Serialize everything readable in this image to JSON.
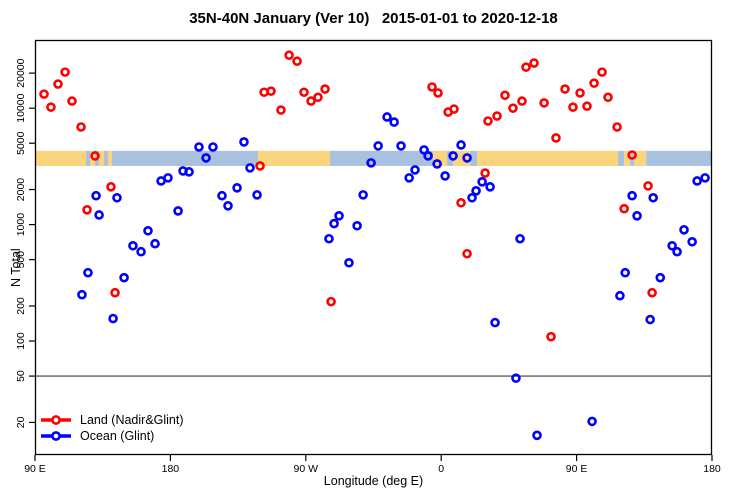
{
  "title": "35N-40N January (Ver 10)   2015-01-01 to 2020-12-18",
  "chart_data": {
    "type": "scatter",
    "xlabel": "Longitude (deg E)",
    "ylabel": "N Total",
    "x_axis": {
      "range_deg": [
        0,
        450
      ],
      "ticks_deg": [
        0,
        90,
        180,
        270,
        360,
        450
      ],
      "tick_labels": [
        "90 E",
        "180",
        "90 W",
        "0",
        "90 E",
        "180"
      ]
    },
    "y_axis": {
      "scale": "log",
      "ylim": [
        10.5,
        38500
      ],
      "ticks": [
        20,
        50,
        100,
        200,
        500,
        1000,
        2000,
        5000,
        10000,
        20000
      ],
      "tick_labels": [
        "20",
        "50",
        "100",
        "200",
        "500",
        "1000",
        "2000",
        "5000",
        "10000",
        "20000"
      ]
    },
    "reference_line_y": 50,
    "grid": "off",
    "legend_position": "bottom-left",
    "legend": [
      {
        "label": "Land (Nadir&Glint)",
        "color": "#FF0000"
      },
      {
        "label": "Ocean (Glint)",
        "color": "#0000FF"
      }
    ],
    "surface_band": {
      "description": "land/ocean strip along 35N-40N",
      "value_top": 4300,
      "value_bottom": 3190,
      "land_color": "#FAD57E",
      "ocean_color": "#A9C0DF",
      "segments": [
        {
          "from": 0.0,
          "to": 33.9,
          "surface": "land"
        },
        {
          "from": 33.9,
          "to": 36.6,
          "surface": "ocean"
        },
        {
          "from": 36.6,
          "to": 39.9,
          "surface": "land"
        },
        {
          "from": 39.9,
          "to": 42.5,
          "surface": "ocean"
        },
        {
          "from": 42.5,
          "to": 45.9,
          "surface": "land"
        },
        {
          "from": 45.9,
          "to": 48.5,
          "surface": "ocean"
        },
        {
          "from": 48.5,
          "to": 51.2,
          "surface": "land"
        },
        {
          "from": 51.2,
          "to": 148.2,
          "surface": "ocean"
        },
        {
          "from": 148.2,
          "to": 196.1,
          "surface": "land"
        },
        {
          "from": 196.1,
          "to": 264.6,
          "surface": "ocean"
        },
        {
          "from": 264.6,
          "to": 273.9,
          "surface": "land"
        },
        {
          "from": 273.9,
          "to": 277.9,
          "surface": "ocean"
        },
        {
          "from": 277.9,
          "to": 289.2,
          "surface": "land"
        },
        {
          "from": 289.2,
          "to": 293.8,
          "surface": "ocean"
        },
        {
          "from": 293.8,
          "to": 387.6,
          "surface": "land"
        },
        {
          "from": 387.6,
          "to": 391.6,
          "surface": "ocean"
        },
        {
          "from": 391.6,
          "to": 395.6,
          "surface": "land"
        },
        {
          "from": 395.6,
          "to": 398.3,
          "surface": "ocean"
        },
        {
          "from": 398.3,
          "to": 406.3,
          "surface": "land"
        },
        {
          "from": 406.3,
          "to": 450.0,
          "surface": "ocean"
        }
      ]
    },
    "series": [
      {
        "name": "Land (Nadir&Glint)",
        "color": "#FF0000",
        "points": [
          [
            20.0,
            20400
          ],
          [
            15.3,
            16100
          ],
          [
            6.0,
            13200
          ],
          [
            24.6,
            11500
          ],
          [
            10.6,
            10200
          ],
          [
            30.6,
            6890
          ],
          [
            39.9,
            3890
          ],
          [
            50.5,
            2110
          ],
          [
            34.6,
            1340
          ],
          [
            53.2,
            260
          ],
          [
            149.6,
            3190
          ],
          [
            168.9,
            28500
          ],
          [
            174.2,
            25300
          ],
          [
            152.3,
            13700
          ],
          [
            156.9,
            14000
          ],
          [
            178.8,
            13700
          ],
          [
            183.5,
            11500
          ],
          [
            188.1,
            12400
          ],
          [
            192.8,
            14600
          ],
          [
            163.5,
            9640
          ],
          [
            196.8,
            218
          ],
          [
            263.9,
            15200
          ],
          [
            267.9,
            13500
          ],
          [
            274.6,
            9260
          ],
          [
            278.5,
            9820
          ],
          [
            283.2,
            1540
          ],
          [
            287.2,
            562
          ],
          [
            299.2,
            2770
          ],
          [
            301.1,
            7760
          ],
          [
            326.4,
            22500
          ],
          [
            331.7,
            24400
          ],
          [
            312.4,
            12900
          ],
          [
            317.7,
            10000
          ],
          [
            323.7,
            11500
          ],
          [
            307.1,
            8560
          ],
          [
            338.4,
            11100
          ],
          [
            346.3,
            5550
          ],
          [
            352.3,
            14600
          ],
          [
            362.3,
            13500
          ],
          [
            357.6,
            10200
          ],
          [
            366.9,
            10400
          ],
          [
            371.6,
            16400
          ],
          [
            376.9,
            20400
          ],
          [
            380.9,
            12400
          ],
          [
            343.0,
            109
          ],
          [
            386.9,
            6890
          ],
          [
            391.6,
            1370
          ],
          [
            396.9,
            3960
          ],
          [
            407.5,
            2150
          ],
          [
            410.2,
            260
          ]
        ]
      },
      {
        "name": "Ocean (Glint)",
        "color": "#0000FF",
        "points": [
          [
            40.6,
            1770
          ],
          [
            54.5,
            1700
          ],
          [
            42.6,
            1210
          ],
          [
            35.2,
            386
          ],
          [
            59.2,
            350
          ],
          [
            31.2,
            250
          ],
          [
            51.9,
            156
          ],
          [
            75.1,
            885
          ],
          [
            65.1,
            658
          ],
          [
            70.5,
            585
          ],
          [
            79.8,
            685
          ],
          [
            83.8,
            2370
          ],
          [
            88.4,
            2520
          ],
          [
            98.4,
            2890
          ],
          [
            102.4,
            2840
          ],
          [
            109.0,
            4640
          ],
          [
            113.7,
            3740
          ],
          [
            118.3,
            4640
          ],
          [
            138.9,
            5130
          ],
          [
            142.9,
            3070
          ],
          [
            95.1,
            1310
          ],
          [
            124.3,
            1770
          ],
          [
            128.3,
            1450
          ],
          [
            134.3,
            2070
          ],
          [
            147.6,
            1800
          ],
          [
            195.4,
            756
          ],
          [
            198.8,
            1020
          ],
          [
            202.1,
            1190
          ],
          [
            214.1,
            977
          ],
          [
            208.7,
            470
          ],
          [
            218.1,
            1800
          ],
          [
            223.4,
            3390
          ],
          [
            228.1,
            4740
          ],
          [
            234.0,
            8400
          ],
          [
            238.7,
            7600
          ],
          [
            243.3,
            4740
          ],
          [
            248.7,
            2520
          ],
          [
            252.6,
            2950
          ],
          [
            258.6,
            4380
          ],
          [
            261.3,
            3890
          ],
          [
            267.3,
            3320
          ],
          [
            272.6,
            2620
          ],
          [
            277.9,
            3890
          ],
          [
            283.2,
            4830
          ],
          [
            287.2,
            3740
          ],
          [
            293.2,
            1950
          ],
          [
            290.5,
            1700
          ],
          [
            297.2,
            2330
          ],
          [
            302.5,
            2110
          ],
          [
            305.8,
            144
          ],
          [
            322.4,
            756
          ],
          [
            319.7,
            48
          ],
          [
            388.8,
            245
          ],
          [
            392.3,
            386
          ],
          [
            396.9,
            1770
          ],
          [
            400.2,
            1190
          ],
          [
            408.9,
            153
          ],
          [
            410.9,
            1700
          ],
          [
            415.6,
            350
          ],
          [
            423.5,
            658
          ],
          [
            426.8,
            585
          ],
          [
            431.4,
            902
          ],
          [
            436.8,
            712
          ],
          [
            440.1,
            2370
          ],
          [
            445.4,
            2520
          ],
          [
            370.3,
            20.4
          ],
          [
            333.7,
            15.5
          ]
        ]
      }
    ]
  }
}
